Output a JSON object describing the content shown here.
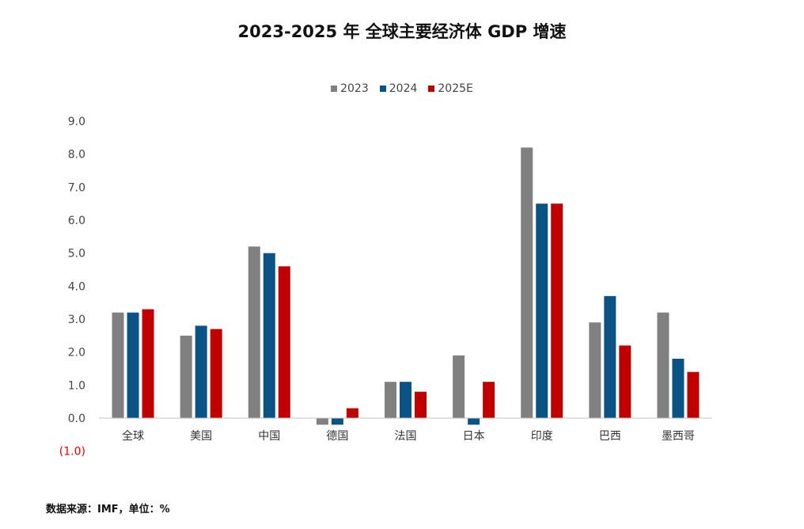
{
  "title": "2023-2025 年 全球主要经济体 GDP 增速",
  "source": "数据来源：IMF，单位：%",
  "colors": {
    "2023": "#808080",
    "2024": "#0b5384",
    "2025E": "#c00000",
    "axis": "#bfbfbf",
    "tick": "#444444",
    "negative_tick": "#e00000"
  },
  "chart_data": {
    "type": "bar",
    "categories": [
      "全球",
      "美国",
      "中国",
      "德国",
      "法国",
      "日本",
      "印度",
      "巴西",
      "墨西哥"
    ],
    "series": [
      {
        "name": "2023",
        "values": [
          3.2,
          2.5,
          5.2,
          -0.2,
          1.1,
          1.9,
          8.2,
          2.9,
          3.2
        ]
      },
      {
        "name": "2024",
        "values": [
          3.2,
          2.8,
          5.0,
          -0.2,
          1.1,
          -0.2,
          6.5,
          3.7,
          1.8
        ]
      },
      {
        "name": "2025E",
        "values": [
          3.3,
          2.7,
          4.6,
          0.3,
          0.8,
          1.1,
          6.5,
          2.2,
          1.4
        ]
      }
    ],
    "y_ticks": [
      "9.0",
      "8.0",
      "7.0",
      "6.0",
      "5.0",
      "4.0",
      "3.0",
      "2.0",
      "1.0",
      "0.0",
      "(1.0)"
    ],
    "ylim": [
      -1,
      9
    ],
    "grid": false,
    "legend_position": "top-center"
  }
}
